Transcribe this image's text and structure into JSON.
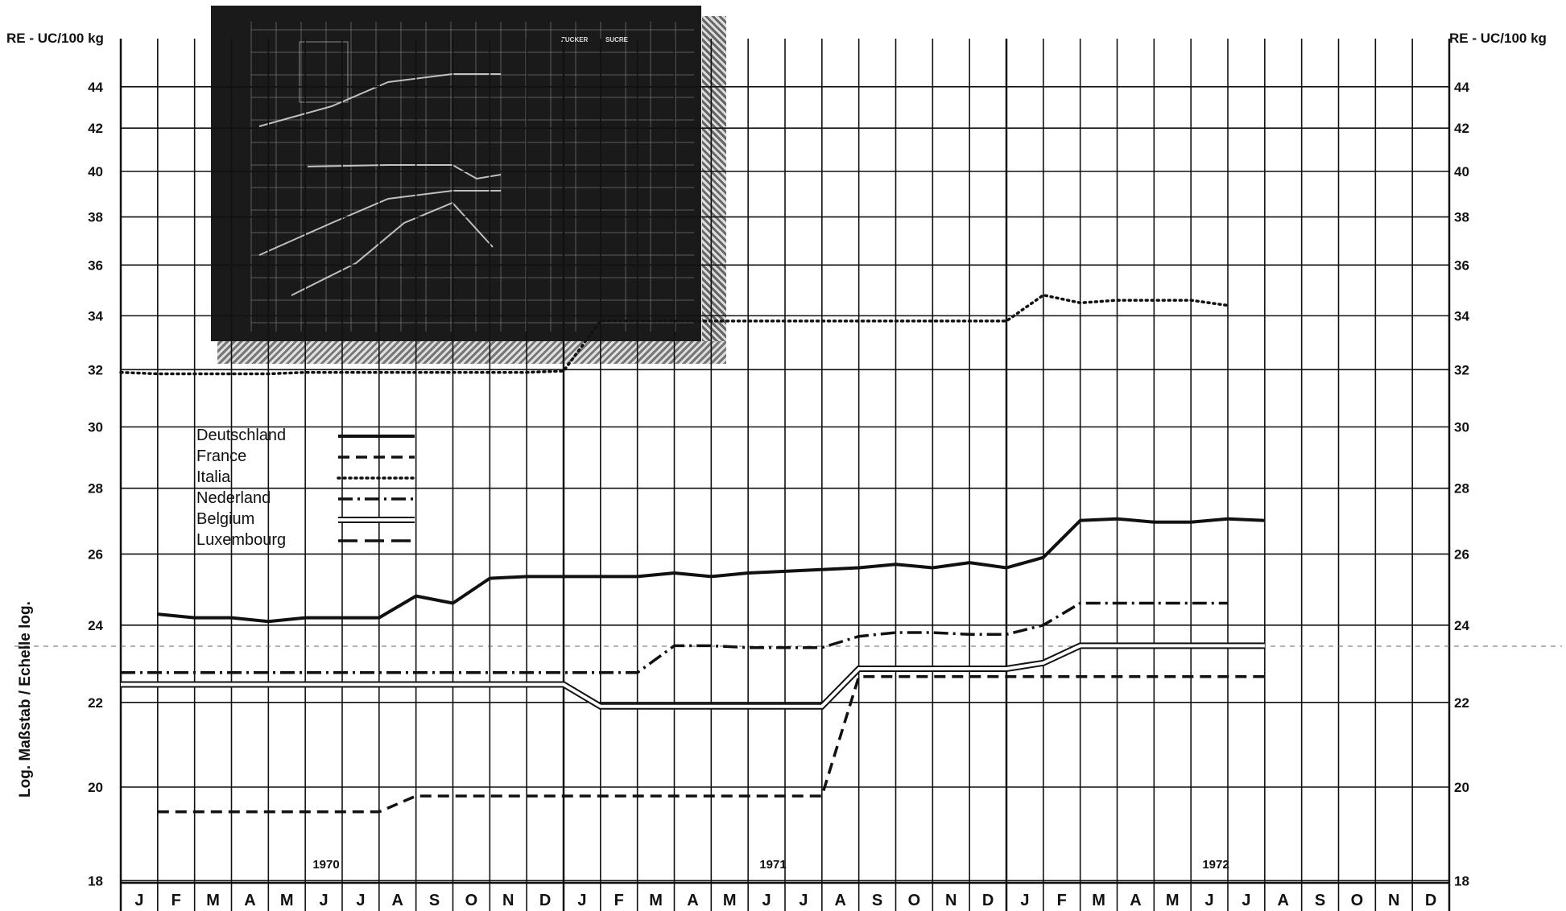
{
  "header": {
    "unit_left": "RE - UC/100 kg",
    "unit_right": "RE - UC/100 kg"
  },
  "scale_label": "Log. Maßstab  /  Echelle log.",
  "inset": {
    "title_de": "ZUCKER",
    "title_fr": "SUCRE"
  },
  "colors": {
    "line": "#111111",
    "grid": "#111111",
    "background": "#ffffff"
  },
  "chart_data": {
    "type": "line",
    "title": "",
    "xlabel": "",
    "ylabel": "RE - UC/100 kg",
    "y_scale": "log",
    "ylim": [
      18,
      46
    ],
    "yticks": [
      18,
      20,
      22,
      24,
      26,
      28,
      30,
      32,
      34,
      36,
      38,
      40,
      42,
      44
    ],
    "month_labels": [
      "J",
      "F",
      "M",
      "A",
      "M",
      "J",
      "J",
      "A",
      "S",
      "O",
      "N",
      "D",
      "J",
      "F",
      "M",
      "A",
      "M",
      "J",
      "J",
      "A",
      "S",
      "O",
      "N",
      "D",
      "J",
      "F",
      "M",
      "A",
      "M",
      "J",
      "J",
      "A",
      "S",
      "O",
      "N",
      "D"
    ],
    "years": [
      "1970",
      "1971",
      "1972"
    ],
    "grid": true,
    "legend": "upper-left",
    "series": [
      {
        "name": "Deutschland",
        "style": "solid-thick",
        "points": [
          [
            1,
            24.3
          ],
          [
            2,
            24.2
          ],
          [
            3,
            24.2
          ],
          [
            4,
            24.1
          ],
          [
            5,
            24.2
          ],
          [
            6,
            24.2
          ],
          [
            7,
            24.2
          ],
          [
            8,
            24.8
          ],
          [
            9,
            24.6
          ],
          [
            10,
            25.3
          ],
          [
            11,
            25.35
          ],
          [
            12,
            25.35
          ],
          [
            13,
            25.35
          ],
          [
            14,
            25.35
          ],
          [
            15,
            25.45
          ],
          [
            16,
            25.35
          ],
          [
            17,
            25.45
          ],
          [
            18,
            25.5
          ],
          [
            19,
            25.55
          ],
          [
            20,
            25.6
          ],
          [
            21,
            25.7
          ],
          [
            22,
            25.6
          ],
          [
            23,
            25.75
          ],
          [
            24,
            25.6
          ],
          [
            25,
            25.9
          ],
          [
            26,
            27.0
          ],
          [
            27,
            27.05
          ],
          [
            28,
            26.95
          ],
          [
            29,
            26.95
          ],
          [
            30,
            27.05
          ],
          [
            31,
            27.0
          ]
        ]
      },
      {
        "name": "France",
        "style": "dashed",
        "points": [
          [
            1,
            19.45
          ],
          [
            2,
            19.45
          ],
          [
            3,
            19.45
          ],
          [
            4,
            19.45
          ],
          [
            5,
            19.45
          ],
          [
            6,
            19.45
          ],
          [
            7,
            19.45
          ],
          [
            8,
            19.8
          ],
          [
            9,
            19.8
          ],
          [
            10,
            19.8
          ],
          [
            11,
            19.8
          ],
          [
            12,
            19.8
          ],
          [
            13,
            19.8
          ],
          [
            14,
            19.8
          ],
          [
            15,
            19.8
          ],
          [
            16,
            19.8
          ],
          [
            17,
            19.8
          ],
          [
            18,
            19.8
          ],
          [
            19,
            19.8
          ],
          [
            20,
            22.65
          ],
          [
            21,
            22.65
          ],
          [
            22,
            22.65
          ],
          [
            23,
            22.65
          ],
          [
            24,
            22.65
          ],
          [
            25,
            22.65
          ],
          [
            26,
            22.65
          ],
          [
            27,
            22.65
          ],
          [
            28,
            22.65
          ],
          [
            29,
            22.65
          ],
          [
            30,
            22.65
          ],
          [
            31,
            22.65
          ]
        ]
      },
      {
        "name": "Italia",
        "style": "dotted",
        "points": [
          [
            0,
            31.9
          ],
          [
            1,
            31.85
          ],
          [
            2,
            31.85
          ],
          [
            3,
            31.85
          ],
          [
            4,
            31.85
          ],
          [
            5,
            31.9
          ],
          [
            6,
            31.9
          ],
          [
            7,
            31.9
          ],
          [
            8,
            31.9
          ],
          [
            9,
            31.9
          ],
          [
            10,
            31.9
          ],
          [
            11,
            31.9
          ],
          [
            12,
            31.95
          ],
          [
            13,
            33.8
          ],
          [
            14,
            33.8
          ],
          [
            15,
            33.8
          ],
          [
            16,
            33.8
          ],
          [
            17,
            33.8
          ],
          [
            18,
            33.8
          ],
          [
            19,
            33.8
          ],
          [
            20,
            33.8
          ],
          [
            21,
            33.8
          ],
          [
            22,
            33.8
          ],
          [
            23,
            33.8
          ],
          [
            24,
            33.8
          ],
          [
            25,
            34.8
          ],
          [
            26,
            34.5
          ],
          [
            27,
            34.6
          ],
          [
            28,
            34.6
          ],
          [
            29,
            34.6
          ],
          [
            30,
            34.4
          ]
        ]
      },
      {
        "name": "Nederland",
        "style": "dash-dot",
        "points": [
          [
            0,
            22.75
          ],
          [
            1,
            22.75
          ],
          [
            2,
            22.75
          ],
          [
            3,
            22.75
          ],
          [
            4,
            22.75
          ],
          [
            5,
            22.75
          ],
          [
            6,
            22.75
          ],
          [
            7,
            22.75
          ],
          [
            8,
            22.75
          ],
          [
            9,
            22.75
          ],
          [
            10,
            22.75
          ],
          [
            11,
            22.75
          ],
          [
            12,
            22.75
          ],
          [
            13,
            22.75
          ],
          [
            14,
            22.75
          ],
          [
            15,
            23.45
          ],
          [
            16,
            23.45
          ],
          [
            17,
            23.4
          ],
          [
            18,
            23.4
          ],
          [
            19,
            23.4
          ],
          [
            20,
            23.7
          ],
          [
            21,
            23.8
          ],
          [
            22,
            23.8
          ],
          [
            23,
            23.75
          ],
          [
            24,
            23.75
          ],
          [
            25,
            24.0
          ],
          [
            26,
            24.6
          ],
          [
            27,
            24.6
          ],
          [
            28,
            24.6
          ],
          [
            29,
            24.6
          ],
          [
            30,
            24.6
          ]
        ]
      },
      {
        "name": "Belgium",
        "style": "double",
        "points": [
          [
            0,
            22.45
          ],
          [
            1,
            22.45
          ],
          [
            2,
            22.45
          ],
          [
            3,
            22.45
          ],
          [
            4,
            22.45
          ],
          [
            5,
            22.45
          ],
          [
            6,
            22.45
          ],
          [
            7,
            22.45
          ],
          [
            8,
            22.45
          ],
          [
            9,
            22.45
          ],
          [
            10,
            22.45
          ],
          [
            11,
            22.45
          ],
          [
            12,
            22.45
          ],
          [
            13,
            21.9
          ],
          [
            14,
            21.9
          ],
          [
            15,
            21.9
          ],
          [
            16,
            21.9
          ],
          [
            17,
            21.9
          ],
          [
            18,
            21.9
          ],
          [
            19,
            21.9
          ],
          [
            20,
            22.85
          ],
          [
            21,
            22.85
          ],
          [
            22,
            22.85
          ],
          [
            23,
            22.85
          ],
          [
            24,
            22.85
          ],
          [
            25,
            23.0
          ],
          [
            26,
            23.45
          ],
          [
            27,
            23.45
          ],
          [
            28,
            23.45
          ],
          [
            29,
            23.45
          ],
          [
            30,
            23.45
          ],
          [
            31,
            23.45
          ]
        ]
      },
      {
        "name": "Luxembourg",
        "style": "long-dash",
        "points": []
      }
    ]
  }
}
